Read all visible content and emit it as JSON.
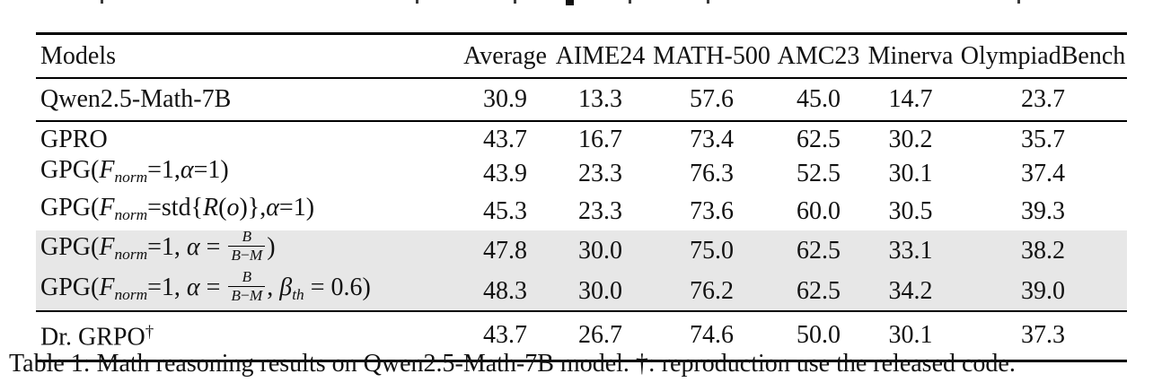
{
  "colors": {
    "background": "#ffffff",
    "text": "#111111",
    "rule": "#000000",
    "highlight_row": "#e7e7e7"
  },
  "table": {
    "columns": [
      "Models",
      "Average",
      "AIME24",
      "MATH-500",
      "AMC23",
      "Minerva",
      "OlympiadBench"
    ],
    "rows": [
      {
        "id": "qwen",
        "highlight": false,
        "label_plain": "Qwen2.5-Math-7B",
        "label_segments": [
          {
            "k": "r",
            "t": "Qwen2.5-Math-7B"
          }
        ],
        "values": [
          "30.9",
          "13.3",
          "57.6",
          "45.0",
          "14.7",
          "23.7"
        ]
      },
      {
        "id": "gpro",
        "highlight": false,
        "label_plain": "GPRO",
        "label_segments": [
          {
            "k": "r",
            "t": "GPRO"
          }
        ],
        "values": [
          "43.7",
          "16.7",
          "73.4",
          "62.5",
          "30.2",
          "35.7"
        ]
      },
      {
        "id": "gpg-alpha1",
        "highlight": false,
        "label_plain": "GPG(F_norm=1,α=1)",
        "label_segments": [
          {
            "k": "r",
            "t": "GPG("
          },
          {
            "k": "i",
            "t": "F"
          },
          {
            "k": "sb",
            "t": "norm"
          },
          {
            "k": "r",
            "t": "=1,"
          },
          {
            "k": "g",
            "t": "α"
          },
          {
            "k": "r",
            "t": "=1)"
          }
        ],
        "values": [
          "43.9",
          "23.3",
          "76.3",
          "52.5",
          "30.1",
          "37.4"
        ]
      },
      {
        "id": "gpg-std",
        "highlight": false,
        "label_plain": "GPG(F_norm=std{R(o)},α=1)",
        "label_segments": [
          {
            "k": "r",
            "t": "GPG("
          },
          {
            "k": "i",
            "t": "F"
          },
          {
            "k": "sb",
            "t": "norm"
          },
          {
            "k": "r",
            "t": "=std{"
          },
          {
            "k": "i",
            "t": "R"
          },
          {
            "k": "r",
            "t": "("
          },
          {
            "k": "i",
            "t": "o"
          },
          {
            "k": "r",
            "t": ")},"
          },
          {
            "k": "g",
            "t": "α"
          },
          {
            "k": "r",
            "t": "=1)"
          }
        ],
        "values": [
          "45.3",
          "23.3",
          "73.6",
          "60.0",
          "30.5",
          "39.3"
        ]
      },
      {
        "id": "gpg-frac",
        "highlight": true,
        "label_plain": "GPG(F_norm=1, α = B/(B−M))",
        "label_segments": [
          {
            "k": "r",
            "t": "GPG("
          },
          {
            "k": "i",
            "t": "F"
          },
          {
            "k": "sb",
            "t": "norm"
          },
          {
            "k": "r",
            "t": "=1, "
          },
          {
            "k": "g",
            "t": "α"
          },
          {
            "k": "r",
            "t": " = "
          },
          {
            "k": "frac",
            "num": [
              {
                "k": "i",
                "t": "B"
              }
            ],
            "den": [
              {
                "k": "i",
                "t": "B"
              },
              {
                "k": "r",
                "t": "−"
              },
              {
                "k": "i",
                "t": "M"
              }
            ]
          },
          {
            "k": "r",
            "t": ")"
          }
        ],
        "values": [
          "47.8",
          "30.0",
          "75.0",
          "62.5",
          "33.1",
          "38.2"
        ]
      },
      {
        "id": "gpg-frac-beta",
        "highlight": true,
        "label_plain": "GPG(F_norm=1, α = B/(B−M), β_th = 0.6)",
        "label_segments": [
          {
            "k": "r",
            "t": "GPG("
          },
          {
            "k": "i",
            "t": "F"
          },
          {
            "k": "sb",
            "t": "norm"
          },
          {
            "k": "r",
            "t": "=1, "
          },
          {
            "k": "g",
            "t": "α"
          },
          {
            "k": "r",
            "t": " = "
          },
          {
            "k": "frac",
            "num": [
              {
                "k": "i",
                "t": "B"
              }
            ],
            "den": [
              {
                "k": "i",
                "t": "B"
              },
              {
                "k": "r",
                "t": "−"
              },
              {
                "k": "i",
                "t": "M"
              }
            ]
          },
          {
            "k": "r",
            "t": ", "
          },
          {
            "k": "g",
            "t": "β"
          },
          {
            "k": "sb",
            "t": "th"
          },
          {
            "k": "r",
            "t": " = 0.6)"
          }
        ],
        "values": [
          "48.3",
          "30.0",
          "76.2",
          "62.5",
          "34.2",
          "39.0"
        ]
      },
      {
        "id": "dr-grpo",
        "highlight": false,
        "label_plain": "Dr. GRPO†",
        "label_segments": [
          {
            "k": "r",
            "t": "Dr. GRPO"
          },
          {
            "k": "sp",
            "t": "†"
          }
        ],
        "values": [
          "43.7",
          "26.7",
          "74.6",
          "50.0",
          "30.1",
          "37.3"
        ]
      }
    ]
  },
  "caption": {
    "text": "Table 1: Math reasoning results on Qwen2.5-Math-7B model. †: reproduction use the released code."
  }
}
